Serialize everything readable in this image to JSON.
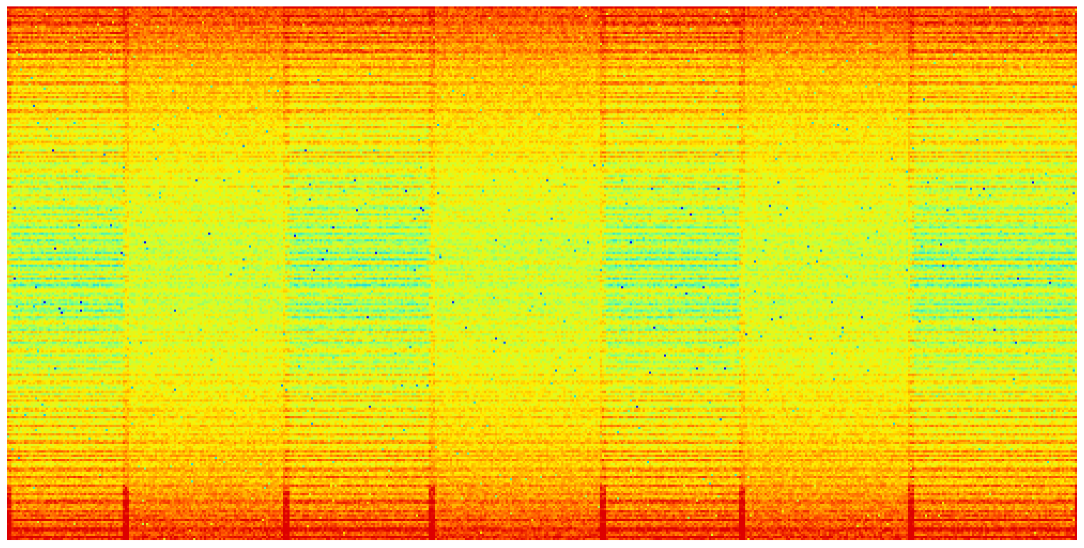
{
  "colormap": {
    "name": "jet",
    "stops": [
      "#0000ff",
      "#00c8ff",
      "#66ff99",
      "#ccff33",
      "#ffee00",
      "#ffaa00",
      "#ff5500",
      "#dd0000"
    ]
  },
  "spectrogram": {
    "segments": [
      {
        "kind": "tonal"
      },
      {
        "kind": "noise"
      },
      {
        "kind": "tonal"
      },
      {
        "kind": "noise"
      },
      {
        "kind": "tonal"
      },
      {
        "kind": "noise"
      },
      {
        "kind": "tonal"
      }
    ]
  }
}
